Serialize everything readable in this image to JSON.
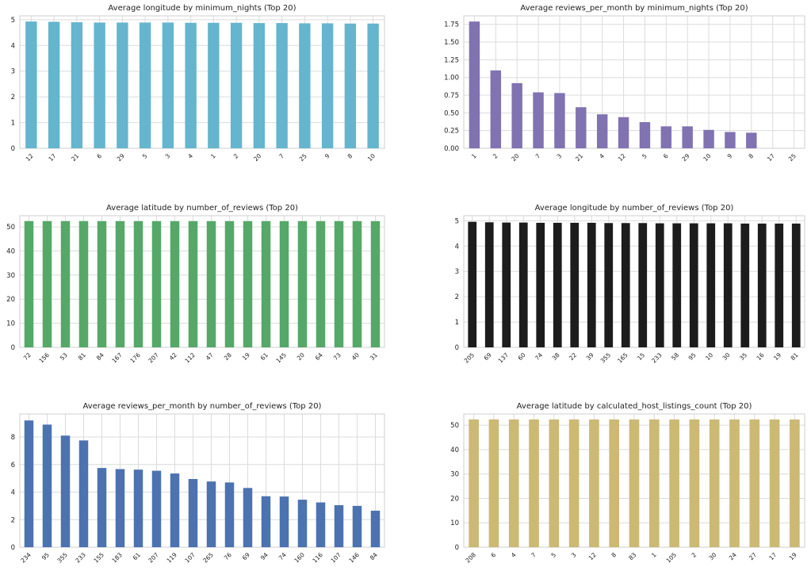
{
  "chart_data": [
    {
      "type": "bar",
      "title": "Average longitude by minimum_nights (Top 20)",
      "color": "#64b5cd",
      "grid": true,
      "categories": [
        "12",
        "17",
        "21",
        "6",
        "29",
        "5",
        "3",
        "4",
        "1",
        "2",
        "20",
        "7",
        "25",
        "9",
        "8",
        "10"
      ],
      "values": [
        4.93,
        4.92,
        4.9,
        4.89,
        4.89,
        4.89,
        4.89,
        4.88,
        4.88,
        4.88,
        4.87,
        4.87,
        4.86,
        4.86,
        4.85,
        4.85
      ],
      "ylim": [
        0,
        5.15
      ],
      "yticks": [
        0,
        1,
        2,
        3,
        4,
        5
      ]
    },
    {
      "type": "bar",
      "title": "Average reviews_per_month by minimum_nights (Top 20)",
      "color": "#8172b2",
      "grid": true,
      "categories": [
        "1",
        "2",
        "20",
        "7",
        "3",
        "21",
        "4",
        "12",
        "5",
        "6",
        "29",
        "10",
        "9",
        "8",
        "17",
        "25"
      ],
      "values": [
        1.79,
        1.1,
        0.92,
        0.79,
        0.78,
        0.58,
        0.48,
        0.44,
        0.37,
        0.31,
        0.31,
        0.26,
        0.23,
        0.22,
        0,
        0
      ],
      "ylim": [
        0,
        1.87
      ],
      "yticks": [
        {
          "value": 0,
          "label": "0.00"
        },
        {
          "value": 0.25,
          "label": "0.25"
        },
        {
          "value": 0.5,
          "label": "0.50"
        },
        {
          "value": 0.75,
          "label": "0.75"
        },
        {
          "value": 1,
          "label": "1.00"
        },
        {
          "value": 1.25,
          "label": "1.25"
        },
        {
          "value": 1.5,
          "label": "1.50"
        },
        {
          "value": 1.75,
          "label": "1.75"
        }
      ]
    },
    {
      "type": "bar",
      "title": "Average latitude by number_of_reviews (Top 20)",
      "color": "#55a868",
      "grid": true,
      "categories": [
        "72",
        "156",
        "53",
        "81",
        "84",
        "167",
        "176",
        "207",
        "42",
        "112",
        "47",
        "28",
        "19",
        "61",
        "145",
        "20",
        "64",
        "73",
        "40",
        "31"
      ],
      "values": [
        52.38,
        52.38,
        52.38,
        52.38,
        52.37,
        52.37,
        52.37,
        52.37,
        52.37,
        52.37,
        52.37,
        52.37,
        52.37,
        52.37,
        52.37,
        52.37,
        52.37,
        52.37,
        52.36,
        52.36
      ],
      "ylim": [
        0,
        54.6
      ],
      "yticks": [
        0,
        10,
        20,
        30,
        40,
        50
      ]
    },
    {
      "type": "bar",
      "title": "Average longitude by number_of_reviews (Top 20)",
      "color": "#1c1c1c",
      "grid": true,
      "categories": [
        "205",
        "69",
        "137",
        "60",
        "74",
        "38",
        "22",
        "39",
        "355",
        "165",
        "15",
        "233",
        "58",
        "95",
        "10",
        "30",
        "35",
        "16",
        "19",
        "81"
      ],
      "values": [
        4.96,
        4.94,
        4.93,
        4.93,
        4.92,
        4.92,
        4.92,
        4.92,
        4.91,
        4.91,
        4.91,
        4.9,
        4.9,
        4.9,
        4.9,
        4.9,
        4.89,
        4.89,
        4.89,
        4.89
      ],
      "ylim": [
        0,
        5.2
      ],
      "yticks": [
        0,
        1,
        2,
        3,
        4,
        5
      ]
    },
    {
      "type": "bar",
      "title": "Average reviews_per_month by number_of_reviews (Top 20)",
      "color": "#4c72b0",
      "grid": true,
      "categories": [
        "234",
        "95",
        "355",
        "233",
        "155",
        "183",
        "61",
        "207",
        "119",
        "107",
        "265",
        "76",
        "69",
        "94",
        "74",
        "160",
        "116",
        "107",
        "146",
        "84"
      ],
      "values": [
        9.2,
        8.9,
        8.1,
        7.75,
        5.75,
        5.67,
        5.63,
        5.55,
        5.35,
        4.95,
        4.77,
        4.7,
        4.3,
        3.7,
        3.68,
        3.45,
        3.25,
        3.05,
        3.0,
        2.65
      ],
      "ylim": [
        0,
        9.67
      ],
      "yticks": [
        0,
        2,
        4,
        6,
        8
      ]
    },
    {
      "type": "bar",
      "title": "Average latitude by calculated_host_listings_count (Top 20)",
      "color": "#ccb974",
      "grid": true,
      "categories": [
        "208",
        "6",
        "4",
        "7",
        "5",
        "3",
        "12",
        "8",
        "83",
        "1",
        "105",
        "2",
        "30",
        "24",
        "27",
        "17",
        "19"
      ],
      "values": [
        52.38,
        52.38,
        52.38,
        52.37,
        52.37,
        52.37,
        52.37,
        52.37,
        52.37,
        52.37,
        52.37,
        52.37,
        52.37,
        52.37,
        52.37,
        52.36,
        52.36
      ],
      "ylim": [
        0,
        54.6
      ],
      "yticks": [
        0,
        10,
        20,
        30,
        40,
        50
      ]
    }
  ]
}
